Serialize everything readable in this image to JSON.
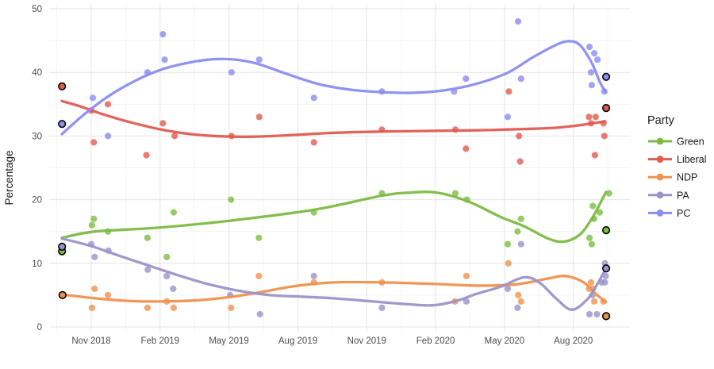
{
  "chart_data": {
    "type": "scatter",
    "title": "",
    "xlabel": "",
    "ylabel": "Percentage",
    "ylim": [
      0,
      50
    ],
    "y_ticks": [
      0,
      10,
      20,
      30,
      40,
      50
    ],
    "x_unit": "months since Oct 2018",
    "x_ticks": [
      {
        "m": 1,
        "label": "Nov 2018"
      },
      {
        "m": 4,
        "label": "Feb 2019"
      },
      {
        "m": 7,
        "label": "May 2019"
      },
      {
        "m": 10,
        "label": "Aug 2019"
      },
      {
        "m": 13,
        "label": "Nov 2019"
      },
      {
        "m": 16,
        "label": "Feb 2020"
      },
      {
        "m": 19,
        "label": "May 2020"
      },
      {
        "m": 22,
        "label": "Aug 2020"
      }
    ],
    "grid": {
      "major": true,
      "minor": true
    },
    "legend": {
      "title": "Party",
      "position": "right"
    },
    "point_style": {
      "radius": 4.1,
      "opacity": 0.8,
      "result_ring_color": "#000000"
    },
    "series": [
      {
        "name": "Green",
        "color": "#7CBB42",
        "points": [
          [
            1.03,
            16
          ],
          [
            1.11,
            17
          ],
          [
            1.73,
            15
          ],
          [
            3.45,
            14
          ],
          [
            4.29,
            11
          ],
          [
            4.59,
            18
          ],
          [
            7.09,
            20
          ],
          [
            8.3,
            14
          ],
          [
            10.7,
            18
          ],
          [
            13.66,
            21
          ],
          [
            16.86,
            21
          ],
          [
            17.36,
            20
          ],
          [
            19.14,
            13
          ],
          [
            19.57,
            15
          ],
          [
            19.72,
            17
          ],
          [
            22.7,
            14
          ],
          [
            22.8,
            13
          ],
          [
            22.85,
            19
          ],
          [
            22.9,
            17
          ],
          [
            23.15,
            18
          ],
          [
            23.55,
            21
          ]
        ],
        "election_results": [
          [
            -0.27,
            11.9
          ],
          [
            23.43,
            15.2
          ]
        ],
        "smooth": [
          [
            -0.28,
            14
          ],
          [
            1.17,
            15
          ],
          [
            3.94,
            15.6
          ],
          [
            7.05,
            16.7
          ],
          [
            10.69,
            18.4
          ],
          [
            13.63,
            20.6
          ],
          [
            14.84,
            21.1
          ],
          [
            16.05,
            21.1
          ],
          [
            17.43,
            19.7
          ],
          [
            18.82,
            17.3
          ],
          [
            19.86,
            15.8
          ],
          [
            20.89,
            13.9
          ],
          [
            21.59,
            13.4
          ],
          [
            22.28,
            14.5
          ],
          [
            22.8,
            17
          ],
          [
            23.15,
            19.3
          ],
          [
            23.42,
            21.2
          ]
        ]
      },
      {
        "name": "Liberal",
        "color": "#E15B52",
        "points": [
          [
            1.0,
            34
          ],
          [
            1.11,
            29
          ],
          [
            1.73,
            35
          ],
          [
            3.4,
            27
          ],
          [
            4.12,
            32
          ],
          [
            4.63,
            30
          ],
          [
            7.11,
            30
          ],
          [
            8.32,
            33
          ],
          [
            10.7,
            29
          ],
          [
            13.66,
            31
          ],
          [
            16.86,
            31
          ],
          [
            17.32,
            28
          ],
          [
            19.19,
            37
          ],
          [
            19.63,
            30
          ],
          [
            19.68,
            26
          ],
          [
            22.68,
            33
          ],
          [
            22.77,
            32
          ],
          [
            22.94,
            27
          ],
          [
            22.97,
            33
          ],
          [
            23.31,
            32
          ],
          [
            23.35,
            30
          ]
        ],
        "election_results": [
          [
            -0.27,
            37.8
          ],
          [
            23.43,
            34.4
          ]
        ],
        "smooth": [
          [
            -0.28,
            35.5
          ],
          [
            0.48,
            34.7
          ],
          [
            1.52,
            33.4
          ],
          [
            2.56,
            32.3
          ],
          [
            3.94,
            31.1
          ],
          [
            5.33,
            30.3
          ],
          [
            6.71,
            29.95
          ],
          [
            8.09,
            29.9
          ],
          [
            9.48,
            30.1
          ],
          [
            11.55,
            30.5
          ],
          [
            13.63,
            30.7
          ],
          [
            15.7,
            30.8
          ],
          [
            17.78,
            30.9
          ],
          [
            19.86,
            31.1
          ],
          [
            21.24,
            31.3
          ],
          [
            22.28,
            31.7
          ],
          [
            23.39,
            32.3
          ]
        ]
      },
      {
        "name": "NDP",
        "color": "#F0914D",
        "points": [
          [
            1.03,
            3
          ],
          [
            1.15,
            6
          ],
          [
            1.73,
            5
          ],
          [
            3.45,
            3
          ],
          [
            4.29,
            4
          ],
          [
            4.59,
            3
          ],
          [
            7.09,
            3
          ],
          [
            8.3,
            8
          ],
          [
            10.7,
            7
          ],
          [
            13.66,
            7
          ],
          [
            16.84,
            4
          ],
          [
            17.34,
            8
          ],
          [
            19.17,
            10
          ],
          [
            19.6,
            5
          ],
          [
            19.72,
            4
          ],
          [
            22.68,
            6
          ],
          [
            22.77,
            7
          ],
          [
            22.85,
            6
          ],
          [
            22.91,
            4
          ],
          [
            23.31,
            4
          ]
        ],
        "election_results": [
          [
            -0.25,
            5.0
          ],
          [
            23.43,
            1.7
          ]
        ],
        "smooth": [
          [
            -0.28,
            5.1
          ],
          [
            1.17,
            4.5
          ],
          [
            2.56,
            4.1
          ],
          [
            3.94,
            4.0
          ],
          [
            5.67,
            4.2
          ],
          [
            7.05,
            4.7
          ],
          [
            8.44,
            5.5
          ],
          [
            9.82,
            6.4
          ],
          [
            11.55,
            7.0
          ],
          [
            13.63,
            7.0
          ],
          [
            15.7,
            6.8
          ],
          [
            17.78,
            6.5
          ],
          [
            19.51,
            6.7
          ],
          [
            20.89,
            7.6
          ],
          [
            21.66,
            8.0
          ],
          [
            22.45,
            7.0
          ],
          [
            22.97,
            5.2
          ],
          [
            23.42,
            3.9
          ]
        ]
      },
      {
        "name": "PA",
        "color": "#9A93C9",
        "points": [
          [
            1.0,
            13
          ],
          [
            1.15,
            11
          ],
          [
            1.75,
            12
          ],
          [
            3.46,
            9
          ],
          [
            4.29,
            8
          ],
          [
            4.57,
            6
          ],
          [
            7.05,
            5
          ],
          [
            8.35,
            2
          ],
          [
            10.7,
            8
          ],
          [
            13.66,
            3
          ],
          [
            17.34,
            4
          ],
          [
            19.14,
            6
          ],
          [
            19.57,
            3
          ],
          [
            19.72,
            13
          ],
          [
            22.7,
            2
          ],
          [
            22.83,
            5
          ],
          [
            23.03,
            2
          ],
          [
            23.23,
            7
          ],
          [
            23.37,
            7
          ],
          [
            23.37,
            10
          ],
          [
            23.41,
            8
          ]
        ],
        "election_results": [
          [
            -0.27,
            12.6
          ],
          [
            23.43,
            9.2
          ]
        ],
        "smooth": [
          [
            -0.28,
            13.9
          ],
          [
            1.0,
            12.7
          ],
          [
            2.21,
            11.2
          ],
          [
            3.46,
            9.7
          ],
          [
            4.63,
            8.3
          ],
          [
            6.02,
            6.8
          ],
          [
            7.4,
            5.7
          ],
          [
            8.79,
            5.0
          ],
          [
            10.17,
            4.75
          ],
          [
            11.55,
            4.5
          ],
          [
            13.28,
            4.0
          ],
          [
            14.67,
            3.6
          ],
          [
            15.88,
            3.4
          ],
          [
            16.92,
            4.1
          ],
          [
            17.78,
            5.2
          ],
          [
            18.82,
            6.3
          ],
          [
            19.86,
            7.8
          ],
          [
            20.55,
            6.9
          ],
          [
            21.24,
            4.5
          ],
          [
            21.93,
            2.7
          ],
          [
            22.62,
            4.4
          ],
          [
            23.07,
            6.9
          ],
          [
            23.39,
            9.0
          ]
        ]
      },
      {
        "name": "PC",
        "color": "#8C8CF2",
        "points": [
          [
            1.07,
            36
          ],
          [
            1.73,
            30
          ],
          [
            3.45,
            40
          ],
          [
            4.12,
            46
          ],
          [
            4.2,
            42
          ],
          [
            7.11,
            40
          ],
          [
            8.32,
            42
          ],
          [
            10.7,
            36
          ],
          [
            13.66,
            37
          ],
          [
            16.8,
            37
          ],
          [
            17.32,
            39
          ],
          [
            19.14,
            33
          ],
          [
            19.59,
            48
          ],
          [
            19.72,
            39
          ],
          [
            22.7,
            44
          ],
          [
            22.77,
            40
          ],
          [
            22.8,
            38
          ],
          [
            22.91,
            43
          ],
          [
            23.05,
            42
          ],
          [
            23.35,
            37
          ]
        ],
        "election_results": [
          [
            -0.27,
            31.9
          ],
          [
            23.43,
            39.3
          ]
        ],
        "smooth": [
          [
            -0.28,
            30.3
          ],
          [
            0.83,
            33.8
          ],
          [
            2.21,
            37.3
          ],
          [
            3.94,
            40.3
          ],
          [
            5.67,
            41.8
          ],
          [
            6.88,
            42.1
          ],
          [
            8.09,
            41.5
          ],
          [
            9.48,
            39.8
          ],
          [
            10.86,
            38.2
          ],
          [
            12.25,
            37.3
          ],
          [
            13.63,
            36.9
          ],
          [
            15.01,
            36.8
          ],
          [
            16.4,
            37.2
          ],
          [
            17.78,
            38.2
          ],
          [
            19.17,
            40.0
          ],
          [
            20.2,
            42.3
          ],
          [
            21.24,
            44.3
          ],
          [
            21.8,
            44.9
          ],
          [
            22.28,
            44.3
          ],
          [
            22.8,
            41.5
          ],
          [
            23.15,
            38.5
          ],
          [
            23.39,
            37.0
          ]
        ]
      }
    ],
    "colors": {
      "grid_major": "#E4E4E4",
      "grid_minor": "#F2F2F2",
      "tick_text": "#4D4D4D",
      "background": "#FFFFFF"
    }
  }
}
